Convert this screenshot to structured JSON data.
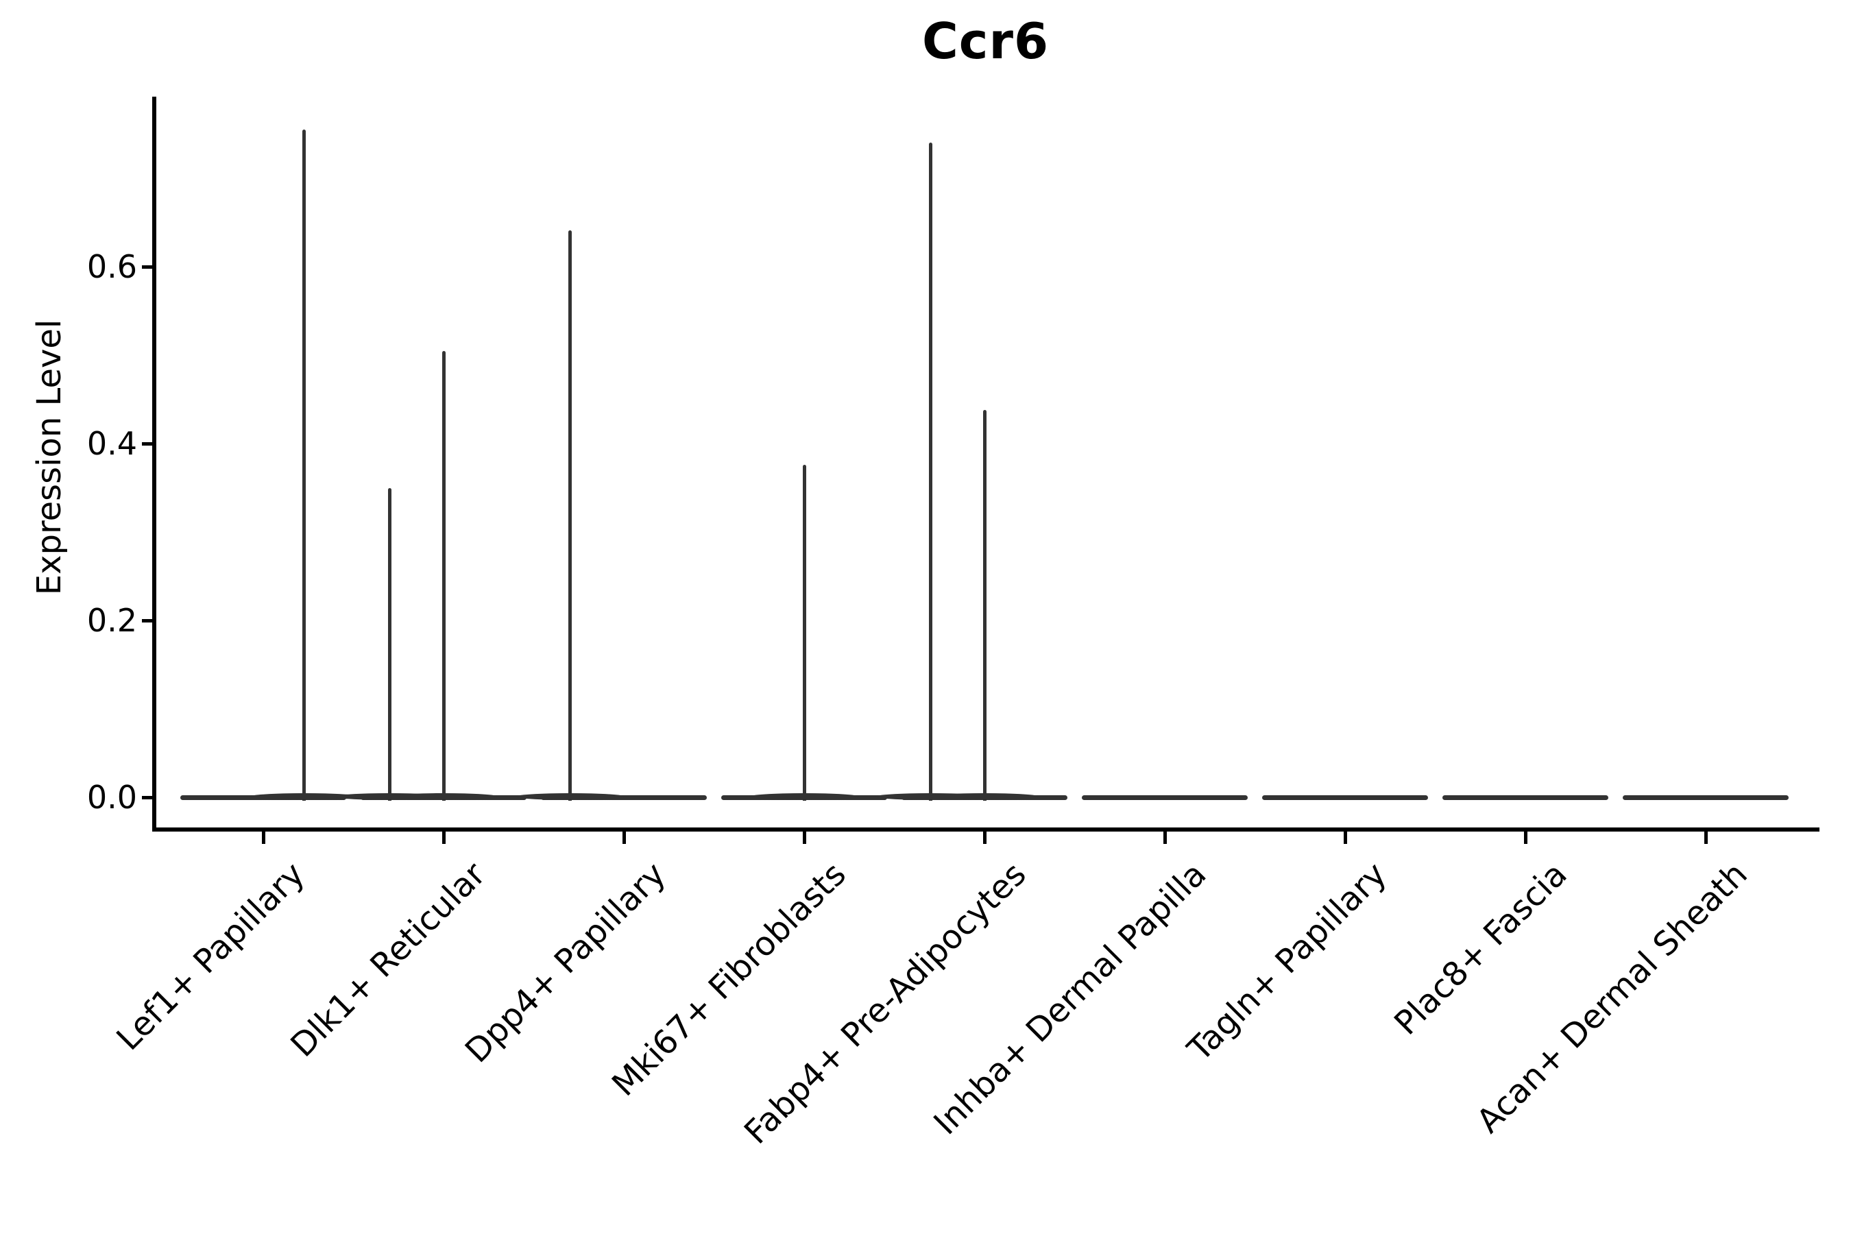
{
  "title": "Ccr6",
  "y_axis": {
    "label": "Expression Level",
    "tick_labels": [
      "0.0",
      "0.2",
      "0.4",
      "0.6"
    ],
    "tick_values": [
      0.0,
      0.2,
      0.4,
      0.6
    ]
  },
  "x_axis": {
    "categories": [
      "Lef1+ Papillary",
      "Dlk1+ Reticular",
      "Dpp4+ Papillary",
      "Mki67+ Fibroblasts",
      "Fabp4+ Pre-Adipocytes",
      "Inhba+ Dermal Papilla",
      "Tagln+ Papillary",
      "Plac8+ Fascia",
      "Acan+ Dermal Sheath"
    ]
  },
  "colors": {
    "violin": "#333333",
    "axis": "#000000",
    "text": "#000000",
    "background": "#ffffff"
  },
  "chart_data": {
    "type": "violin",
    "title": "Ccr6",
    "xlabel": "",
    "ylabel": "Expression Level",
    "ylim": [
      -0.039,
      0.792
    ],
    "yticks": [
      0.0,
      0.2,
      0.4,
      0.6
    ],
    "grid": false,
    "legend": "none",
    "categories": [
      "Lef1+ Papillary",
      "Dlk1+ Reticular",
      "Dpp4+ Papillary",
      "Mki67+ Fibroblasts",
      "Fabp4+ Pre-Adipocytes",
      "Inhba+ Dermal Papilla",
      "Tagln+ Papillary",
      "Plac8+ Fascia",
      "Acan+ Dermal Sheath"
    ],
    "description": "Violin plot of Ccr6 expression; every violin is a flat line at 0 (most cells express 0) with thin vertical density spikes reaching the maximum expressed values.",
    "violins": [
      {
        "category": "Lef1+ Papillary",
        "baseline_value": 0.0,
        "spikes": [
          {
            "x_offset": 0.227,
            "value": 0.755
          }
        ]
      },
      {
        "category": "Dlk1+ Reticular",
        "baseline_value": 0.0,
        "spikes": [
          {
            "x_offset": -0.3,
            "value": 0.35
          },
          {
            "x_offset": 0.0,
            "value": 0.505
          }
        ]
      },
      {
        "category": "Dpp4+ Papillary",
        "baseline_value": 0.0,
        "spikes": [
          {
            "x_offset": -0.298,
            "value": 0.641
          }
        ]
      },
      {
        "category": "Mki67+ Fibroblasts",
        "baseline_value": 0.0,
        "spikes": [
          {
            "x_offset": 0.0,
            "value": 0.376
          }
        ]
      },
      {
        "category": "Fabp4+ Pre-Adipocytes",
        "baseline_value": 0.0,
        "spikes": [
          {
            "x_offset": -0.299,
            "value": 0.74
          },
          {
            "x_offset": 0.0,
            "value": 0.438
          }
        ]
      },
      {
        "category": "Inhba+ Dermal Papilla",
        "baseline_value": 0.0,
        "spikes": []
      },
      {
        "category": "Tagln+ Papillary",
        "baseline_value": 0.0,
        "spikes": []
      },
      {
        "category": "Plac8+ Fascia",
        "baseline_value": 0.0,
        "spikes": []
      },
      {
        "category": "Acan+ Dermal Sheath",
        "baseline_value": 0.0,
        "spikes": []
      }
    ]
  }
}
